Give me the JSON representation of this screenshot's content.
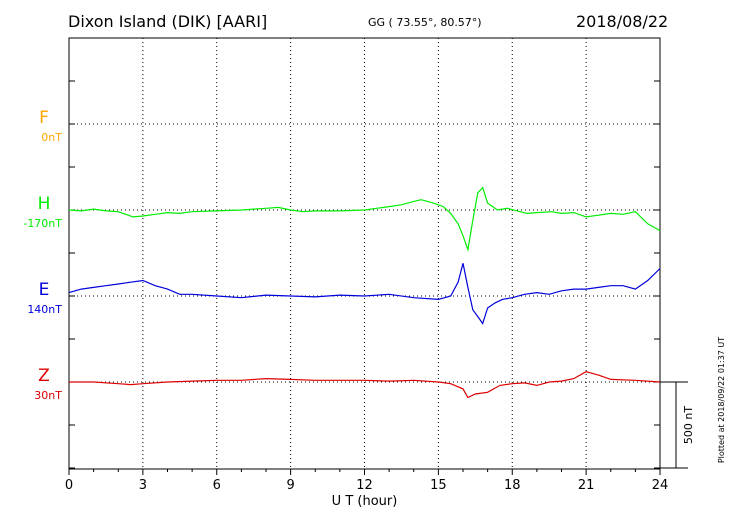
{
  "header": {
    "station": "Dixon Island (DIK)  [AARI]",
    "coords": "GG ( 73.55°,  80.57°)",
    "date": "2018/08/22"
  },
  "plotted_note": "Plotted at 2018/09/22 01:37 UT",
  "chart_data": {
    "type": "line",
    "xlabel": "U T (hour)",
    "xlim": [
      0,
      24
    ],
    "x_ticks": [
      "0",
      "3",
      "6",
      "9",
      "12",
      "15",
      "18",
      "21",
      "24"
    ],
    "grid": true,
    "scale_bar": {
      "label": "500 nT",
      "value_nT": 500
    },
    "components": [
      {
        "letter": "F",
        "baseline": "0nT",
        "color": "#ffa500",
        "values": []
      },
      {
        "letter": "H",
        "baseline": "-170nT",
        "color": "#00ee00",
        "x": [
          0,
          0.5,
          1,
          1.5,
          2,
          2.3,
          2.6,
          3,
          3.5,
          4,
          4.5,
          5,
          6,
          7,
          7.5,
          8,
          8.5,
          9,
          9.5,
          10,
          11,
          12,
          12.5,
          13,
          13.5,
          14,
          14.3,
          14.8,
          15.2,
          15.5,
          15.8,
          16,
          16.2,
          16.4,
          16.6,
          16.8,
          17,
          17.4,
          17.8,
          18.2,
          18.6,
          19,
          19.6,
          20,
          20.5,
          21,
          21.5,
          22,
          22.5,
          23,
          23.5,
          24
        ],
        "y": [
          0,
          -5,
          5,
          -5,
          -10,
          -25,
          -40,
          -35,
          -25,
          -15,
          -20,
          -10,
          -5,
          0,
          5,
          10,
          15,
          0,
          -10,
          -5,
          -5,
          0,
          10,
          20,
          30,
          50,
          60,
          40,
          20,
          -20,
          -80,
          -150,
          -230,
          -60,
          100,
          130,
          40,
          0,
          10,
          -5,
          -20,
          -15,
          -10,
          -20,
          -15,
          -40,
          -30,
          -20,
          -25,
          -10,
          -80,
          -120
        ]
      },
      {
        "letter": "E",
        "baseline": "140nT",
        "color": "#0000dd",
        "x": [
          0,
          0.5,
          1,
          1.5,
          2,
          2.5,
          3,
          3.5,
          4,
          4.5,
          5,
          6,
          7,
          8,
          9,
          10,
          11,
          12,
          13,
          14,
          15,
          15.5,
          15.8,
          16,
          16.2,
          16.4,
          16.6,
          16.8,
          17,
          17.3,
          17.6,
          18,
          18.5,
          19,
          19.5,
          20,
          20.5,
          21,
          21.5,
          22,
          22.5,
          23,
          23.5,
          24
        ],
        "y": [
          20,
          40,
          50,
          60,
          70,
          80,
          90,
          60,
          40,
          10,
          10,
          0,
          -10,
          5,
          0,
          -5,
          5,
          0,
          10,
          -10,
          -20,
          0,
          80,
          190,
          50,
          -80,
          -120,
          -160,
          -70,
          -40,
          -20,
          -10,
          10,
          20,
          10,
          30,
          40,
          40,
          50,
          60,
          60,
          40,
          90,
          160
        ]
      },
      {
        "letter": "Z",
        "baseline": "30nT",
        "color": "#dd0000",
        "x": [
          0,
          1,
          2,
          2.5,
          3,
          4,
          5,
          6,
          7,
          8,
          9,
          10,
          11,
          12,
          13,
          14,
          15,
          15.5,
          16,
          16.2,
          16.5,
          17,
          17.5,
          18,
          18.5,
          19,
          19.5,
          20,
          20.5,
          21,
          21.5,
          22,
          23,
          24
        ],
        "y": [
          0,
          0,
          -10,
          -15,
          -10,
          0,
          5,
          10,
          10,
          20,
          15,
          10,
          10,
          10,
          5,
          10,
          0,
          -10,
          -40,
          -90,
          -70,
          -60,
          -20,
          -10,
          -5,
          -20,
          0,
          5,
          20,
          60,
          40,
          15,
          10,
          0
        ]
      }
    ]
  }
}
